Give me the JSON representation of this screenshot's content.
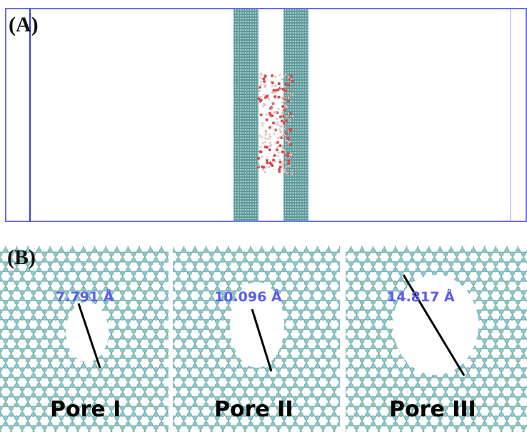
{
  "panel_a": {
    "label": "(A)"
  },
  "panel_b": {
    "label": "(B)",
    "pores": [
      {
        "width": "7.791 Å",
        "name": "Pore I"
      },
      {
        "width": "10.096 Å",
        "name": "Pore II"
      },
      {
        "width": "14.817 Å",
        "name": "Pore III"
      }
    ]
  }
}
